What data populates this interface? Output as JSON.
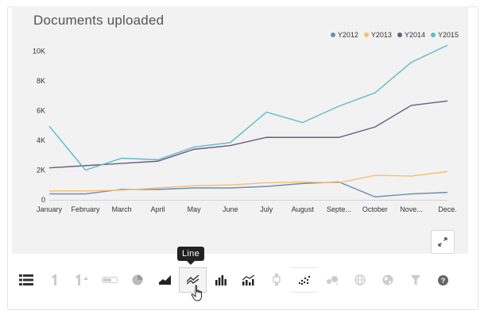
{
  "chart": {
    "title": "Documents uploaded"
  },
  "chart_data": {
    "type": "line",
    "title": "Documents uploaded",
    "categories": [
      "January",
      "February",
      "March",
      "April",
      "May",
      "June",
      "July",
      "August",
      "Septe...",
      "October",
      "Nove...",
      "Dece."
    ],
    "yticks": [
      "0",
      "2K",
      "4K",
      "6K",
      "8K",
      "10K"
    ],
    "ylim": [
      0,
      10400
    ],
    "legend_position": "top-right",
    "series": [
      {
        "name": "Y2012",
        "color": "#6e8fb5",
        "values": [
          400,
          400,
          700,
          700,
          800,
          800,
          900,
          1100,
          1200,
          200,
          400,
          500
        ]
      },
      {
        "name": "Y2013",
        "color": "#f7c072",
        "values": [
          600,
          600,
          650,
          800,
          950,
          1000,
          1150,
          1200,
          1150,
          1650,
          1600,
          1900
        ]
      },
      {
        "name": "Y2014",
        "color": "#6a5b84",
        "values": [
          2150,
          2300,
          2450,
          2600,
          3400,
          3650,
          4200,
          4200,
          4200,
          4900,
          6350,
          6650
        ]
      },
      {
        "name": "Y2015",
        "color": "#5cbcc9",
        "values": [
          4950,
          2000,
          2800,
          2700,
          3550,
          3850,
          5900,
          5200,
          6300,
          7200,
          9250,
          10400
        ]
      }
    ]
  },
  "toolbar": {
    "tooltip": "Line",
    "tools": [
      {
        "name": "table-icon"
      },
      {
        "name": "number-one-icon"
      },
      {
        "name": "number-trend-icon"
      },
      {
        "name": "progress-bar-icon"
      },
      {
        "name": "pie-chart-icon"
      },
      {
        "name": "area-chart-icon"
      },
      {
        "name": "line-chart-icon"
      },
      {
        "name": "bar-chart-icon"
      },
      {
        "name": "combo-chart-icon"
      },
      {
        "name": "funnel-stack-icon"
      },
      {
        "name": "scatter-icon"
      },
      {
        "name": "bubble-icon"
      },
      {
        "name": "globe-icon"
      },
      {
        "name": "world-map-icon"
      },
      {
        "name": "filter-icon"
      },
      {
        "name": "help-icon"
      }
    ]
  }
}
